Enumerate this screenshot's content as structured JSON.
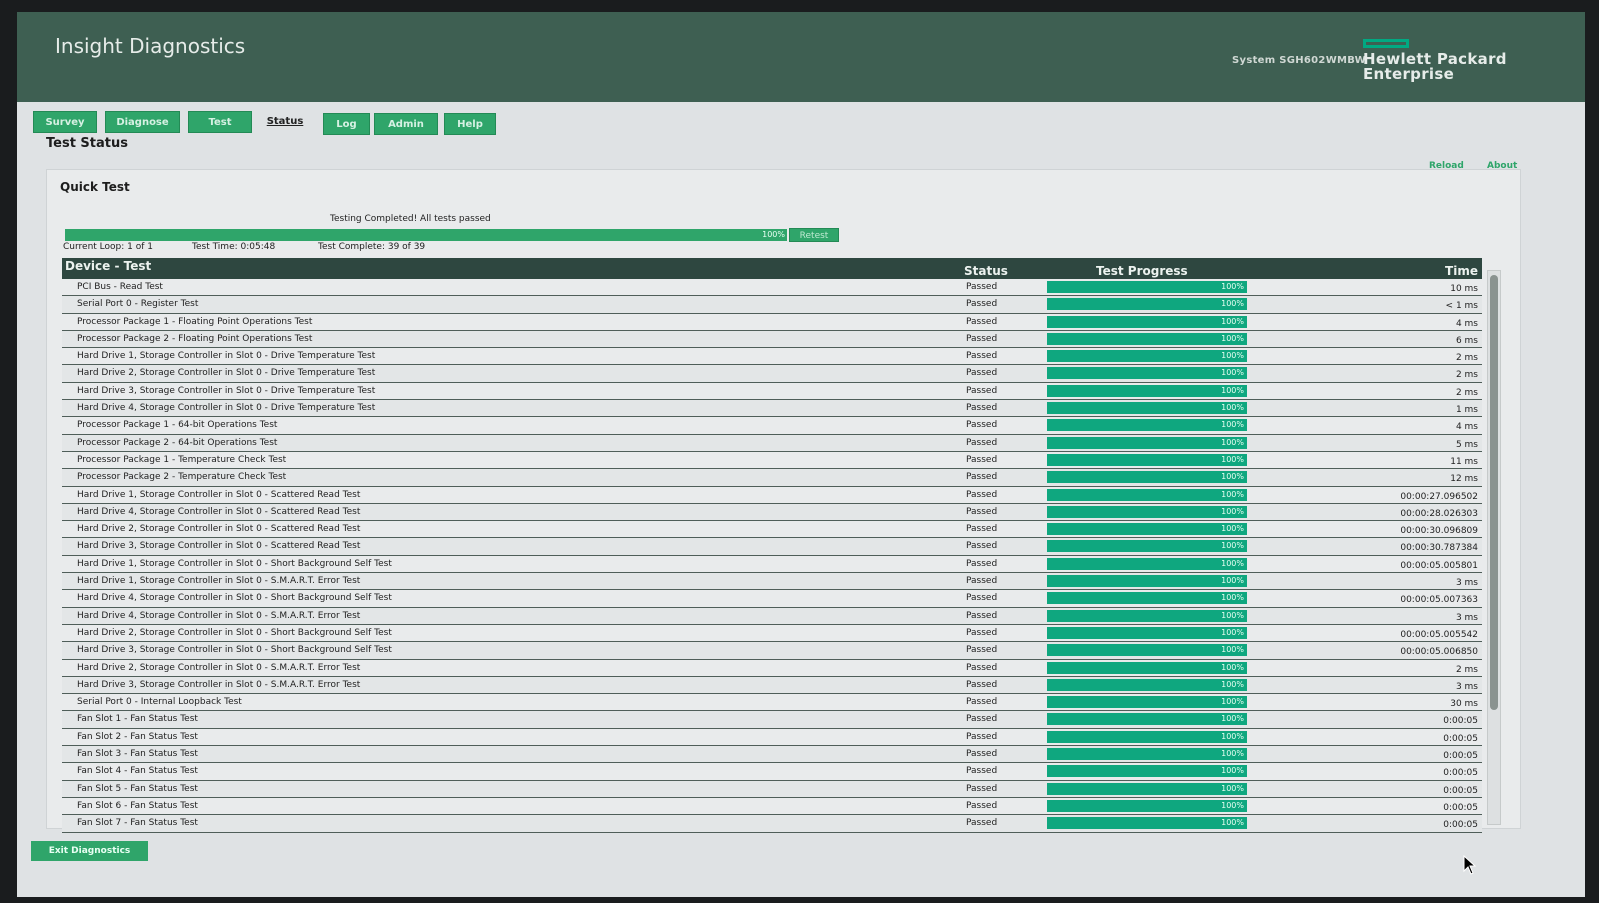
{
  "header": {
    "title": "Insight Diagnostics",
    "system_id": "System SGH602WMBW",
    "brand_line1": "Hewlett Packard",
    "brand_line2": "Enterprise",
    "brand_color": "#01a982"
  },
  "tabs": [
    {
      "label": "Survey"
    },
    {
      "label": "Diagnose"
    },
    {
      "label": "Test"
    },
    {
      "label": "Status",
      "active": true
    },
    {
      "label": "Log"
    },
    {
      "label": "Admin"
    },
    {
      "label": "Help"
    }
  ],
  "page": {
    "title": "Test Status",
    "reload_label": "Reload",
    "about_label": "About"
  },
  "quick_test": {
    "title": "Quick Test",
    "status_message": "Testing Completed! All tests passed",
    "progress_label": "100%",
    "progress_fraction": 1.0,
    "retest_label": "Retest",
    "current_loop": "Current Loop: 1 of 1",
    "test_time": "Test Time: 0:05:48",
    "test_complete": "Test Complete: 39 of 39"
  },
  "table": {
    "columns": [
      "Device - Test",
      "Status",
      "Test Progress",
      "Time"
    ],
    "rows": [
      {
        "name": "PCI Bus - Read Test",
        "status": "Passed",
        "progress": "100%",
        "time": "10 ms"
      },
      {
        "name": "Serial Port 0 - Register Test",
        "status": "Passed",
        "progress": "100%",
        "time": "< 1 ms"
      },
      {
        "name": "Processor Package 1 - Floating Point Operations Test",
        "status": "Passed",
        "progress": "100%",
        "time": "4 ms"
      },
      {
        "name": "Processor Package 2 - Floating Point Operations Test",
        "status": "Passed",
        "progress": "100%",
        "time": "6 ms"
      },
      {
        "name": "Hard Drive 1, Storage Controller in Slot 0 - Drive Temperature Test",
        "status": "Passed",
        "progress": "100%",
        "time": "2 ms"
      },
      {
        "name": "Hard Drive 2, Storage Controller in Slot 0 - Drive Temperature Test",
        "status": "Passed",
        "progress": "100%",
        "time": "2 ms"
      },
      {
        "name": "Hard Drive 3, Storage Controller in Slot 0 - Drive Temperature Test",
        "status": "Passed",
        "progress": "100%",
        "time": "2 ms"
      },
      {
        "name": "Hard Drive 4, Storage Controller in Slot 0 - Drive Temperature Test",
        "status": "Passed",
        "progress": "100%",
        "time": "1 ms"
      },
      {
        "name": "Processor Package 1 - 64-bit Operations Test",
        "status": "Passed",
        "progress": "100%",
        "time": "4 ms"
      },
      {
        "name": "Processor Package 2 - 64-bit Operations Test",
        "status": "Passed",
        "progress": "100%",
        "time": "5 ms"
      },
      {
        "name": "Processor Package 1 - Temperature Check Test",
        "status": "Passed",
        "progress": "100%",
        "time": "11 ms"
      },
      {
        "name": "Processor Package 2 - Temperature Check Test",
        "status": "Passed",
        "progress": "100%",
        "time": "12 ms"
      },
      {
        "name": "Hard Drive 1, Storage Controller in Slot 0 - Scattered Read Test",
        "status": "Passed",
        "progress": "100%",
        "time": "00:00:27.096502"
      },
      {
        "name": "Hard Drive 4, Storage Controller in Slot 0 - Scattered Read Test",
        "status": "Passed",
        "progress": "100%",
        "time": "00:00:28.026303"
      },
      {
        "name": "Hard Drive 2, Storage Controller in Slot 0 - Scattered Read Test",
        "status": "Passed",
        "progress": "100%",
        "time": "00:00:30.096809"
      },
      {
        "name": "Hard Drive 3, Storage Controller in Slot 0 - Scattered Read Test",
        "status": "Passed",
        "progress": "100%",
        "time": "00:00:30.787384"
      },
      {
        "name": "Hard Drive 1, Storage Controller in Slot 0 - Short Background Self Test",
        "status": "Passed",
        "progress": "100%",
        "time": "00:00:05.005801"
      },
      {
        "name": "Hard Drive 1, Storage Controller in Slot 0 - S.M.A.R.T. Error Test",
        "status": "Passed",
        "progress": "100%",
        "time": "3 ms"
      },
      {
        "name": "Hard Drive 4, Storage Controller in Slot 0 - Short Background Self Test",
        "status": "Passed",
        "progress": "100%",
        "time": "00:00:05.007363"
      },
      {
        "name": "Hard Drive 4, Storage Controller in Slot 0 - S.M.A.R.T. Error Test",
        "status": "Passed",
        "progress": "100%",
        "time": "3 ms"
      },
      {
        "name": "Hard Drive 2, Storage Controller in Slot 0 - Short Background Self Test",
        "status": "Passed",
        "progress": "100%",
        "time": "00:00:05.005542"
      },
      {
        "name": "Hard Drive 3, Storage Controller in Slot 0 - Short Background Self Test",
        "status": "Passed",
        "progress": "100%",
        "time": "00:00:05.006850"
      },
      {
        "name": "Hard Drive 2, Storage Controller in Slot 0 - S.M.A.R.T. Error Test",
        "status": "Passed",
        "progress": "100%",
        "time": "2 ms"
      },
      {
        "name": "Hard Drive 3, Storage Controller in Slot 0 - S.M.A.R.T. Error Test",
        "status": "Passed",
        "progress": "100%",
        "time": "3 ms"
      },
      {
        "name": "Serial Port 0 - Internal Loopback Test",
        "status": "Passed",
        "progress": "100%",
        "time": "30 ms"
      },
      {
        "name": "Fan Slot 1 - Fan Status Test",
        "status": "Passed",
        "progress": "100%",
        "time": "0:00:05"
      },
      {
        "name": "Fan Slot 2 - Fan Status Test",
        "status": "Passed",
        "progress": "100%",
        "time": "0:00:05"
      },
      {
        "name": "Fan Slot 3 - Fan Status Test",
        "status": "Passed",
        "progress": "100%",
        "time": "0:00:05"
      },
      {
        "name": "Fan Slot 4 - Fan Status Test",
        "status": "Passed",
        "progress": "100%",
        "time": "0:00:05"
      },
      {
        "name": "Fan Slot 5 - Fan Status Test",
        "status": "Passed",
        "progress": "100%",
        "time": "0:00:05"
      },
      {
        "name": "Fan Slot 6 - Fan Status Test",
        "status": "Passed",
        "progress": "100%",
        "time": "0:00:05"
      },
      {
        "name": "Fan Slot 7 - Fan Status Test",
        "status": "Passed",
        "progress": "100%",
        "time": "0:00:05"
      }
    ]
  },
  "footer": {
    "exit_label": "Exit Diagnostics"
  },
  "colors": {
    "header_bg": "#3e5f52",
    "accent_green": "#2fa56a",
    "progress_fill": "#0fa77f",
    "table_header_bg": "#2e4740"
  }
}
